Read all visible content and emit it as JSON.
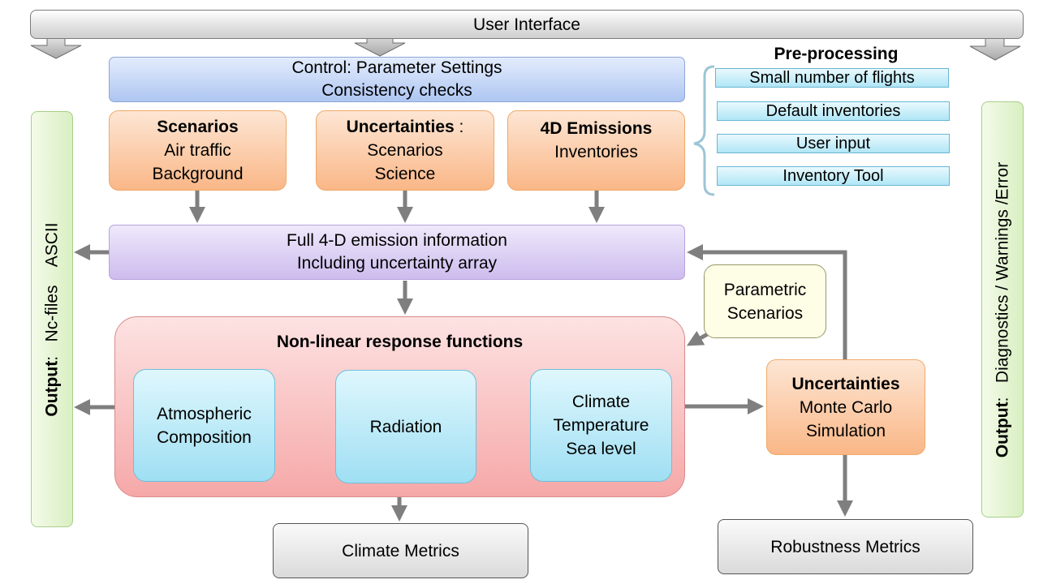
{
  "user_interface": "User Interface",
  "control": {
    "line1": "Control: Parameter Settings",
    "line2": "Consistency checks"
  },
  "preprocessing": {
    "title": "Pre-processing",
    "items": [
      "Small number of flights",
      "Default inventories",
      "User input",
      "Inventory Tool"
    ]
  },
  "scenarios": {
    "title": "Scenarios",
    "line1": "Air traffic",
    "line2": "Background"
  },
  "uncertainties_top": {
    "title": "Uncertainties",
    "suffix": " :",
    "line1": "Scenarios",
    "line2": "Science"
  },
  "emissions_4d": {
    "title": "4D Emissions",
    "line1": "Inventories"
  },
  "full_emission": {
    "line1": "Full 4-D emission information",
    "line2": "Including uncertainty array"
  },
  "parametric": {
    "line1": "Parametric",
    "line2": "Scenarios"
  },
  "nonlinear": {
    "title": "Non-linear response functions",
    "atmospheric": {
      "line1": "Atmospheric",
      "line2": "Composition"
    },
    "radiation": "Radiation",
    "climate": {
      "line1": "Climate",
      "line2": "Temperature",
      "line3": "Sea level"
    }
  },
  "uncertainties_mc": {
    "title": "Uncertainties",
    "line1": "Monte Carlo",
    "line2": "Simulation"
  },
  "climate_metrics": "Climate Metrics",
  "robustness_metrics": "Robustness Metrics",
  "output_left": {
    "label": "Output",
    "text": ":   Nc-files    ASCII"
  },
  "output_right": {
    "label": "Output",
    "text": ":   Diagnostics / Warnings /Error"
  }
}
